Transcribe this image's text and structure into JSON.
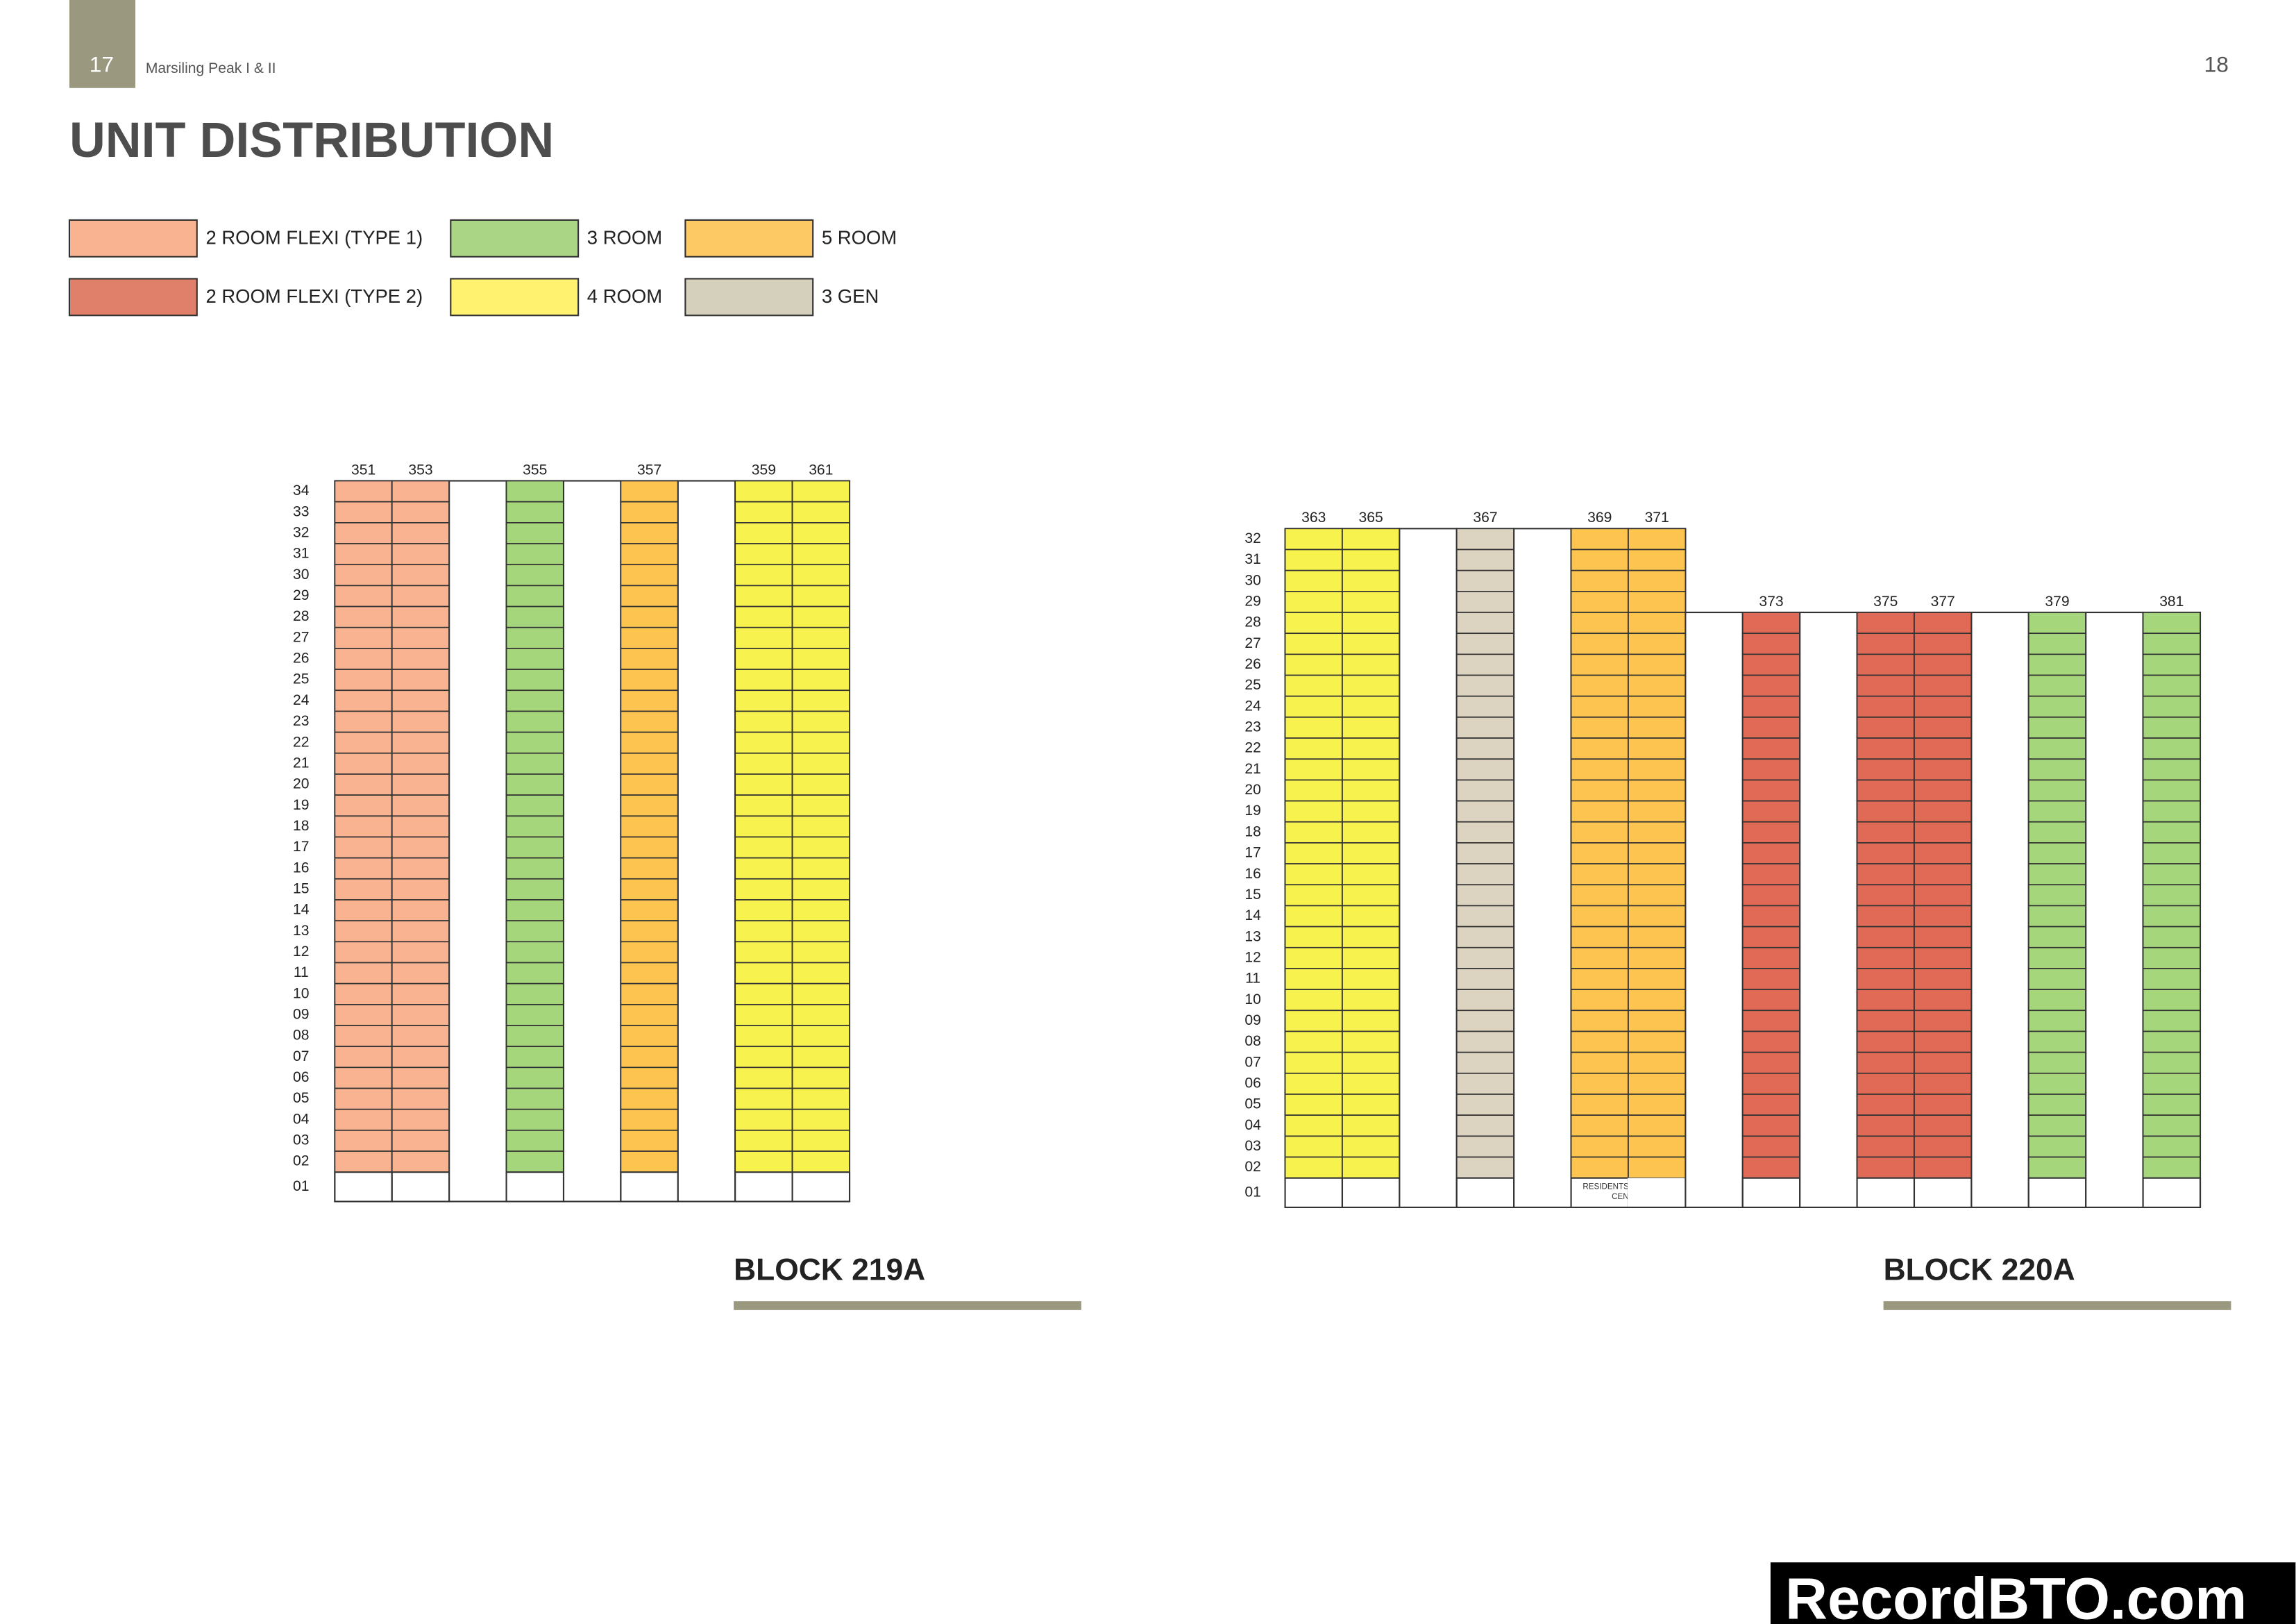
{
  "header": {
    "page_left": "17",
    "project": "Marsiling Peak I & II",
    "page_right": "18"
  },
  "title": "UNIT DISTRIBUTION",
  "legend": [
    {
      "label": "2 ROOM FLEXI (TYPE 1)",
      "color": "#f9b391"
    },
    {
      "label": "2 ROOM FLEXI (TYPE 2)",
      "color": "#e07f6a"
    },
    {
      "label": "3 ROOM",
      "color": "#a9d585"
    },
    {
      "label": "4 ROOM",
      "color": "#fff26e"
    },
    {
      "label": "5 ROOM",
      "color": "#fdc965"
    },
    {
      "label": "3 GEN",
      "color": "#d5d0bc"
    }
  ],
  "blocks": [
    {
      "name": "BLOCK 219A",
      "floors": [
        "34",
        "33",
        "32",
        "31",
        "30",
        "29",
        "28",
        "27",
        "26",
        "25",
        "24",
        "23",
        "22",
        "21",
        "20",
        "19",
        "18",
        "17",
        "16",
        "15",
        "14",
        "13",
        "12",
        "11",
        "10",
        "09",
        "08",
        "07",
        "06",
        "05",
        "04",
        "03",
        "02",
        "01"
      ],
      "columns": [
        {
          "unit": "351",
          "color": "#f9b391",
          "floors": 34
        },
        {
          "unit": "353",
          "color": "#f9b391",
          "floors": 34
        },
        {
          "floors": 34
        },
        {
          "unit": "355",
          "color": "#a5d67c",
          "floors": 34
        },
        {
          "floors": 34
        },
        {
          "unit": "357",
          "color": "#fdc54f",
          "floors": 34
        },
        {
          "floors": 34
        },
        {
          "unit": "359",
          "color": "#f7f24e",
          "floors": 34
        },
        {
          "unit": "361",
          "color": "#f7f24e",
          "floors": 34
        }
      ]
    },
    {
      "name": "BLOCK 220A",
      "floors": [
        "32",
        "31",
        "30",
        "29",
        "28",
        "27",
        "26",
        "25",
        "24",
        "23",
        "22",
        "21",
        "20",
        "19",
        "18",
        "17",
        "16",
        "15",
        "14",
        "13",
        "12",
        "11",
        "10",
        "09",
        "08",
        "07",
        "06",
        "05",
        "04",
        "03",
        "02",
        "01"
      ],
      "columns": [
        {
          "unit": "363",
          "color": "#f7f24e",
          "floors": 32
        },
        {
          "unit": "365",
          "color": "#f7f24e",
          "floors": 32
        },
        {
          "floors": 32
        },
        {
          "unit": "367",
          "color": "#dcd3c0",
          "floors": 32
        },
        {
          "floors": 32
        },
        {
          "unit": "369",
          "color": "#fdc54f",
          "floors": 32,
          "ground_label": [
            "RESIDENTS' NETWORK",
            "CENTRE"
          ]
        },
        {
          "unit": "371",
          "color": "#fdc54f",
          "floors": 32
        },
        {
          "floors": 28
        },
        {
          "unit": "373",
          "color": "#e06a55",
          "floors": 28
        },
        {
          "floors": 28
        },
        {
          "unit": "375",
          "color": "#e06a55",
          "floors": 28
        },
        {
          "unit": "377",
          "color": "#e06a55",
          "floors": 28
        },
        {
          "floors": 28
        },
        {
          "unit": "379",
          "color": "#a5d67c",
          "floors": 28
        },
        {
          "floors": 28
        },
        {
          "unit": "381",
          "color": "#a5d67c",
          "floors": 28
        }
      ]
    }
  ],
  "watermark": "RecordBTO.com"
}
